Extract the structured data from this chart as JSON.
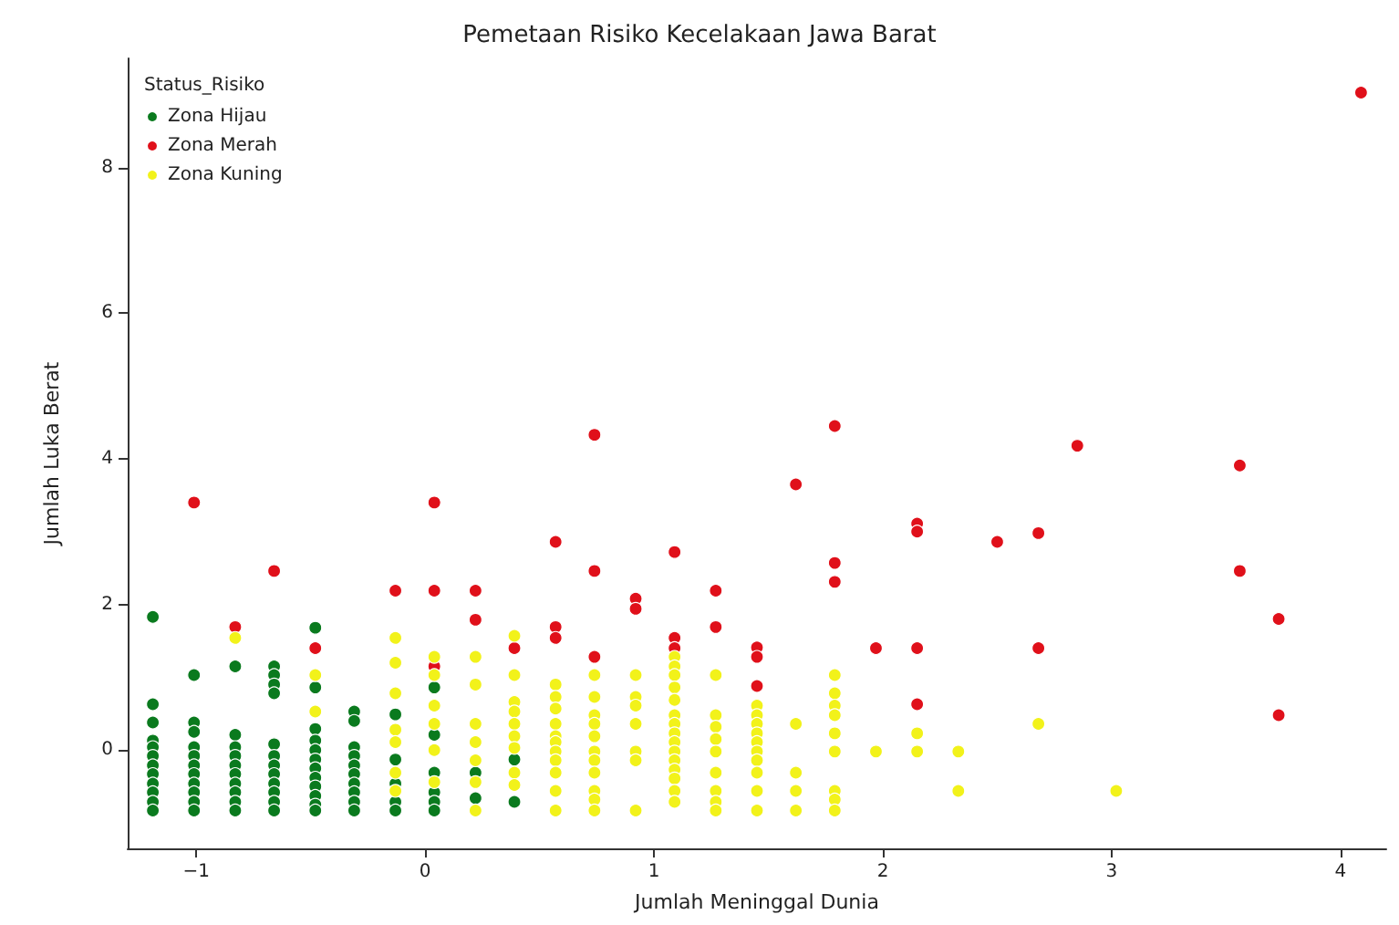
{
  "chart_data": {
    "type": "scatter",
    "title": "Pemetaan Risiko Kecelakaan Jawa Barat",
    "xlabel": "Jumlah Meninggal Dunia",
    "ylabel": "Jumlah Luka Berat",
    "legend_title": "Status_Risiko",
    "legend": "top left",
    "marker": "circle",
    "grid": false,
    "xlim": [
      -1.3,
      4.2
    ],
    "ylim": [
      -1.35,
      9.5
    ],
    "xticks": [
      -1,
      0,
      1,
      2,
      3,
      4
    ],
    "yticks": [
      0,
      2,
      4,
      6,
      8
    ],
    "series": [
      {
        "name": "Zona Hijau",
        "color": "#0a7a1e",
        "x": [
          -1.19,
          -1.19,
          -1.19,
          -1.19,
          -1.19,
          -1.19,
          -1.19,
          -1.19,
          -1.19,
          -1.19,
          -1.19,
          -1.19,
          -1.01,
          -1.01,
          -1.01,
          -1.01,
          -1.01,
          -1.01,
          -1.01,
          -1.01,
          -1.01,
          -1.01,
          -1.01,
          -0.83,
          -0.83,
          -0.83,
          -0.83,
          -0.83,
          -0.83,
          -0.83,
          -0.83,
          -0.83,
          -0.83,
          -0.66,
          -0.66,
          -0.66,
          -0.66,
          -0.66,
          -0.66,
          -0.66,
          -0.66,
          -0.66,
          -0.66,
          -0.66,
          -0.66,
          -0.48,
          -0.48,
          -0.48,
          -0.48,
          -0.48,
          -0.48,
          -0.48,
          -0.48,
          -0.48,
          -0.48,
          -0.48,
          -0.48,
          -0.31,
          -0.31,
          -0.31,
          -0.31,
          -0.31,
          -0.31,
          -0.31,
          -0.31,
          -0.31,
          -0.31,
          -0.13,
          -0.13,
          -0.13,
          -0.13,
          -0.13,
          0.04,
          0.04,
          0.04,
          0.04,
          0.04,
          0.04,
          0.22,
          0.22,
          0.39,
          0.39
        ],
        "values": [
          1.83,
          0.63,
          0.38,
          0.13,
          0.04,
          -0.08,
          -0.21,
          -0.33,
          -0.46,
          -0.58,
          -0.71,
          -0.83,
          1.03,
          0.38,
          0.25,
          0.04,
          -0.08,
          -0.21,
          -0.33,
          -0.46,
          -0.58,
          -0.71,
          -0.83,
          1.15,
          0.21,
          0.04,
          -0.08,
          -0.21,
          -0.33,
          -0.46,
          -0.58,
          -0.71,
          -0.83,
          1.15,
          1.03,
          0.9,
          0.78,
          0.08,
          -0.08,
          -0.21,
          -0.33,
          -0.46,
          -0.58,
          -0.71,
          -0.83,
          1.68,
          0.86,
          0.29,
          0.13,
          0.0,
          -0.13,
          -0.25,
          -0.38,
          -0.5,
          -0.63,
          -0.75,
          -0.83,
          0.53,
          0.4,
          0.04,
          -0.08,
          -0.21,
          -0.33,
          -0.46,
          -0.58,
          -0.71,
          -0.83,
          0.49,
          -0.13,
          -0.46,
          -0.71,
          -0.83,
          0.86,
          0.21,
          -0.31,
          -0.58,
          -0.71,
          -0.83,
          -0.31,
          -0.66,
          -0.13,
          -0.71
        ]
      },
      {
        "name": "Zona Merah",
        "color": "#e0101a",
        "x": [
          -1.01,
          -0.83,
          -0.66,
          -0.48,
          -0.13,
          0.04,
          0.04,
          0.04,
          0.22,
          0.22,
          0.39,
          0.57,
          0.57,
          0.57,
          0.74,
          0.74,
          0.74,
          0.92,
          0.92,
          1.09,
          1.09,
          1.09,
          1.27,
          1.27,
          1.45,
          1.45,
          1.45,
          1.62,
          1.79,
          1.79,
          1.79,
          1.97,
          2.15,
          2.15,
          2.15,
          2.15,
          2.5,
          2.68,
          2.68,
          2.85,
          3.56,
          3.56,
          3.73,
          3.73,
          4.09
        ],
        "values": [
          3.4,
          1.69,
          2.46,
          1.4,
          2.19,
          3.4,
          2.19,
          1.15,
          2.19,
          1.79,
          1.4,
          2.86,
          1.69,
          1.54,
          4.33,
          2.46,
          1.28,
          2.08,
          1.94,
          2.72,
          1.54,
          1.4,
          2.19,
          1.69,
          1.41,
          1.28,
          0.88,
          3.65,
          4.45,
          2.57,
          2.31,
          1.4,
          3.11,
          3.0,
          1.4,
          0.63,
          2.86,
          2.98,
          1.4,
          4.18,
          3.91,
          2.46,
          1.8,
          0.48,
          9.03
        ]
      },
      {
        "name": "Zona Kuning",
        "color": "#f2f21a",
        "x": [
          -0.83,
          -0.48,
          -0.48,
          -0.13,
          -0.13,
          -0.13,
          -0.13,
          -0.13,
          -0.13,
          -0.13,
          0.04,
          0.04,
          0.04,
          0.04,
          0.04,
          0.04,
          0.22,
          0.22,
          0.22,
          0.22,
          0.22,
          0.22,
          0.22,
          0.39,
          0.39,
          0.39,
          0.39,
          0.39,
          0.39,
          0.39,
          0.39,
          0.39,
          0.57,
          0.57,
          0.57,
          0.57,
          0.57,
          0.57,
          0.57,
          0.57,
          0.57,
          0.57,
          0.57,
          0.74,
          0.74,
          0.74,
          0.74,
          0.74,
          0.74,
          0.74,
          0.74,
          0.74,
          0.74,
          0.74,
          0.92,
          0.92,
          0.92,
          0.92,
          0.92,
          0.92,
          0.92,
          1.09,
          1.09,
          1.09,
          1.09,
          1.09,
          1.09,
          1.09,
          1.09,
          1.09,
          1.09,
          1.09,
          1.09,
          1.09,
          1.09,
          1.09,
          1.27,
          1.27,
          1.27,
          1.27,
          1.27,
          1.27,
          1.27,
          1.27,
          1.27,
          1.45,
          1.45,
          1.45,
          1.45,
          1.45,
          1.45,
          1.45,
          1.45,
          1.45,
          1.45,
          1.62,
          1.62,
          1.62,
          1.62,
          1.79,
          1.79,
          1.79,
          1.79,
          1.79,
          1.79,
          1.79,
          1.79,
          1.79,
          1.97,
          2.15,
          2.15,
          2.33,
          2.33,
          2.68,
          3.02
        ],
        "values": [
          1.54,
          1.03,
          0.53,
          1.54,
          1.2,
          0.78,
          0.28,
          0.11,
          -0.31,
          -0.56,
          1.28,
          1.03,
          0.61,
          0.36,
          0.0,
          -0.44,
          1.28,
          0.9,
          0.36,
          0.11,
          -0.14,
          -0.44,
          -0.83,
          1.57,
          1.03,
          0.66,
          0.53,
          0.36,
          0.19,
          0.03,
          -0.31,
          -0.48,
          0.9,
          0.73,
          0.57,
          0.36,
          0.19,
          0.11,
          -0.02,
          -0.14,
          -0.31,
          -0.56,
          -0.83,
          1.03,
          0.73,
          0.48,
          0.36,
          0.19,
          -0.02,
          -0.14,
          -0.31,
          -0.56,
          -0.68,
          -0.83,
          1.03,
          0.73,
          0.61,
          0.36,
          -0.02,
          -0.14,
          -0.83,
          1.28,
          1.15,
          1.03,
          0.86,
          0.69,
          0.48,
          0.36,
          0.23,
          0.11,
          -0.02,
          -0.14,
          -0.27,
          -0.39,
          -0.56,
          -0.71,
          1.03,
          0.48,
          0.32,
          0.15,
          -0.02,
          -0.31,
          -0.56,
          -0.71,
          -0.83,
          0.61,
          0.48,
          0.36,
          0.23,
          0.11,
          -0.02,
          -0.14,
          -0.31,
          -0.56,
          -0.83,
          0.36,
          -0.31,
          -0.56,
          -0.83,
          1.03,
          0.78,
          0.61,
          0.48,
          0.23,
          -0.02,
          -0.56,
          -0.68,
          -0.83,
          -0.02,
          0.23,
          -0.02,
          -0.02,
          -0.56,
          0.36,
          -0.56
        ]
      }
    ]
  }
}
